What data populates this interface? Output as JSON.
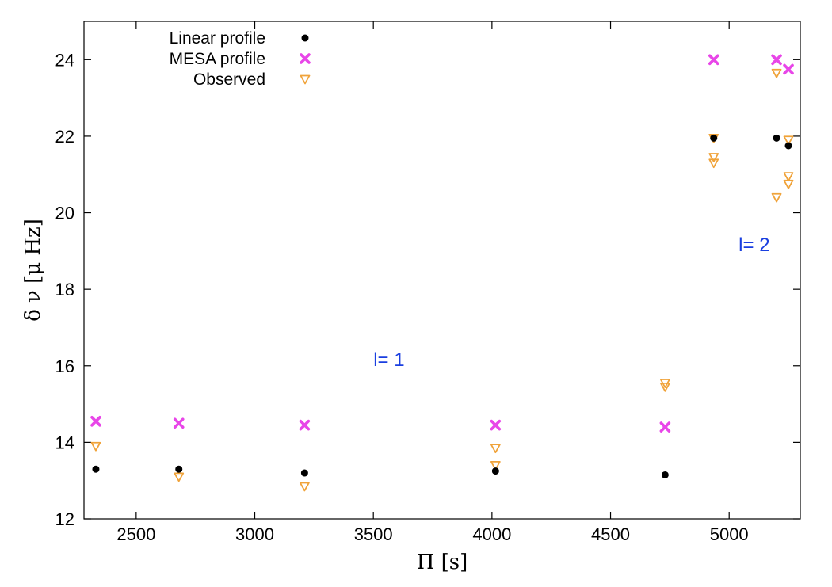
{
  "chart_data": {
    "type": "scatter",
    "xlabel": "Π [s]",
    "ylabel": "δ ν [μ Hz]",
    "xlim": [
      2280,
      5300
    ],
    "ylim": [
      12,
      25
    ],
    "x_ticks": [
      2500,
      3000,
      3500,
      4000,
      4500,
      5000
    ],
    "y_ticks": [
      12,
      14,
      16,
      18,
      20,
      22,
      24
    ],
    "grid": false,
    "legend_position": "top-left",
    "series": [
      {
        "name": "Linear profile",
        "marker": "filled-circle",
        "color": "#000000",
        "points": [
          {
            "x": 2330,
            "y": 13.3
          },
          {
            "x": 2680,
            "y": 13.3
          },
          {
            "x": 3210,
            "y": 13.2
          },
          {
            "x": 4015,
            "y": 13.25
          },
          {
            "x": 4730,
            "y": 13.15
          },
          {
            "x": 4935,
            "y": 21.95
          },
          {
            "x": 5200,
            "y": 21.95
          },
          {
            "x": 5250,
            "y": 21.75
          }
        ]
      },
      {
        "name": "MESA profile",
        "marker": "x-cross",
        "color": "#e846e8",
        "points": [
          {
            "x": 2330,
            "y": 14.55
          },
          {
            "x": 2680,
            "y": 14.5
          },
          {
            "x": 3210,
            "y": 14.45
          },
          {
            "x": 4015,
            "y": 14.45
          },
          {
            "x": 4730,
            "y": 14.4
          },
          {
            "x": 4935,
            "y": 24.0
          },
          {
            "x": 5200,
            "y": 24.0
          },
          {
            "x": 5250,
            "y": 23.75
          }
        ]
      },
      {
        "name": "Observed",
        "marker": "open-down-triangle",
        "color": "#f0a33a",
        "points": [
          {
            "x": 2330,
            "y": 13.9
          },
          {
            "x": 2680,
            "y": 13.1
          },
          {
            "x": 3210,
            "y": 12.85
          },
          {
            "x": 4015,
            "y": 13.85
          },
          {
            "x": 4015,
            "y": 13.4
          },
          {
            "x": 4730,
            "y": 15.55
          },
          {
            "x": 4730,
            "y": 15.45
          },
          {
            "x": 4935,
            "y": 21.95
          },
          {
            "x": 4935,
            "y": 21.45
          },
          {
            "x": 4935,
            "y": 21.3
          },
          {
            "x": 5200,
            "y": 23.65
          },
          {
            "x": 5200,
            "y": 20.4
          },
          {
            "x": 5250,
            "y": 21.9
          },
          {
            "x": 5250,
            "y": 20.95
          },
          {
            "x": 5250,
            "y": 20.75
          }
        ]
      }
    ],
    "annotations": [
      {
        "text": "l= 1",
        "x": 3500,
        "y": 16.0
      },
      {
        "text": "l= 2",
        "x": 5040,
        "y": 19.0
      }
    ]
  }
}
